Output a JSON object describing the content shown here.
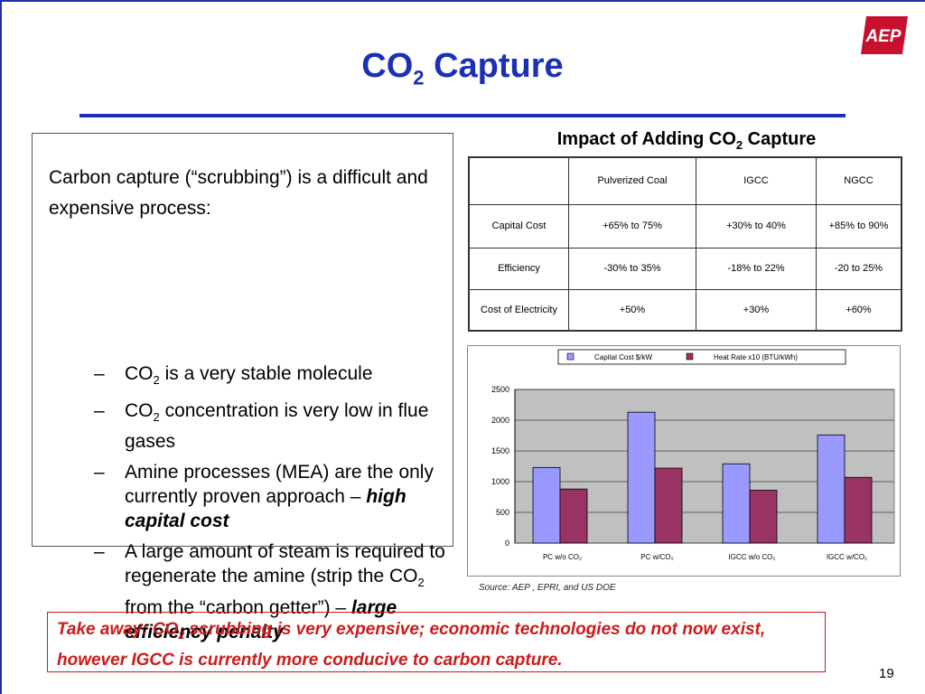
{
  "slide": {
    "title_pre": "CO",
    "title_sub": "2",
    "title_post": " Capture",
    "logo_text": "AEP",
    "page_number": "19"
  },
  "colors": {
    "title_blue": "#1c2fb8",
    "logo_red": "#c8102e",
    "takeaway_red": "#cc1a1a"
  },
  "textbox": {
    "intro": "Carbon capture (“scrubbing”) is a difficult and expensive process:",
    "bullets": [
      {
        "dash": "–",
        "p1": "CO",
        "sub1": "2",
        "p2": " is a very stable molecule"
      },
      {
        "dash": "–",
        "p1": "CO",
        "sub1": "2",
        "p2": " concentration is very low in flue gases"
      },
      {
        "dash": "–",
        "p1": "Amine processes (MEA) are the only currently proven approach – ",
        "em": "high capital cost"
      },
      {
        "dash": "–",
        "p1": "A large amount of steam is required to regenerate the amine (strip the CO",
        "sub1": "2",
        "p2": " from the “carbon getter”) – ",
        "em": "large efficiency penalty"
      }
    ]
  },
  "table": {
    "title_pre": "Impact of Adding CO",
    "title_sub": "2",
    "title_post": " Capture",
    "columns": [
      "Pulverized Coal",
      "IGCC",
      "NGCC"
    ],
    "rows": [
      {
        "label": "Capital Cost",
        "values": [
          "+65% to 75%",
          "+30% to 40%",
          "+85% to 90%"
        ]
      },
      {
        "label": "Efficiency",
        "values": [
          "-30% to 35%",
          "-18% to 22%",
          "-20 to 25%"
        ]
      },
      {
        "label": "Cost of Electricity",
        "values": [
          "+50%",
          "+30%",
          "+60%"
        ]
      }
    ]
  },
  "chart_data": {
    "type": "bar",
    "categories": [
      "PC w/o CO2",
      "PC w/CO2",
      "IGCC w/o CO2",
      "IGCC w/CO2"
    ],
    "series": [
      {
        "name": "Capital Cost $/kW",
        "color": "#9999ff",
        "values": [
          1230,
          2130,
          1290,
          1760
        ]
      },
      {
        "name": "Heat Rate x10 (BTU/kWh)",
        "color": "#993366",
        "values": [
          880,
          1220,
          860,
          1070
        ]
      }
    ],
    "ylim": [
      0,
      2500
    ],
    "yticks": [
      0,
      500,
      1000,
      1500,
      2000,
      2500
    ],
    "grid": true,
    "legend": "top"
  },
  "source": "Source: AEP , EPRI, and US DOE",
  "takeaway": {
    "p1": "Take away: CO",
    "sub": "2",
    "p2": "  scrubbing is very expensive; economic technologies do not now exist, however IGCC is currently more conducive to carbon capture."
  }
}
